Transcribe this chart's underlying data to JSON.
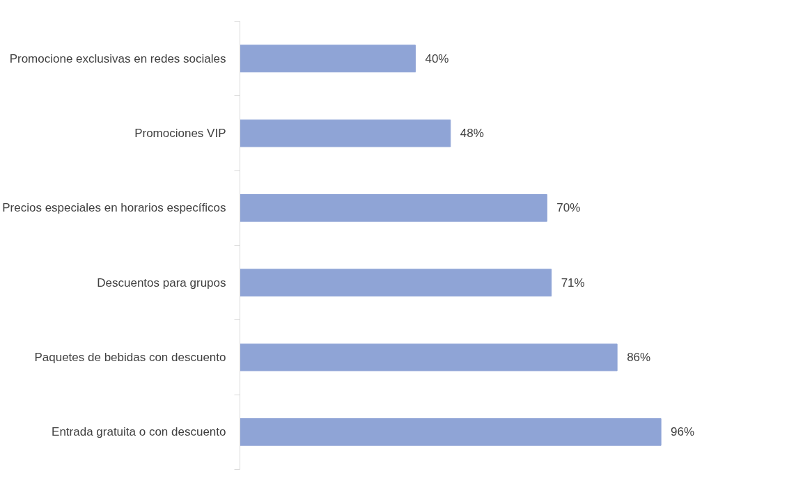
{
  "chart_data": {
    "type": "bar",
    "orientation": "horizontal",
    "categories": [
      "Promocione exclusivas en redes sociales",
      "Promociones VIP",
      "Precios especiales en horarios específicos",
      "Descuentos para grupos",
      "Paquetes de bebidas con descuento",
      "Entrada gratuita o con descuento"
    ],
    "values": [
      40,
      48,
      70,
      71,
      86,
      96
    ],
    "value_labels": [
      "40%",
      "48%",
      "70%",
      "71%",
      "86%",
      "96%"
    ],
    "color": "#8fa4d6",
    "grid": false,
    "tick_labels": "y"
  }
}
